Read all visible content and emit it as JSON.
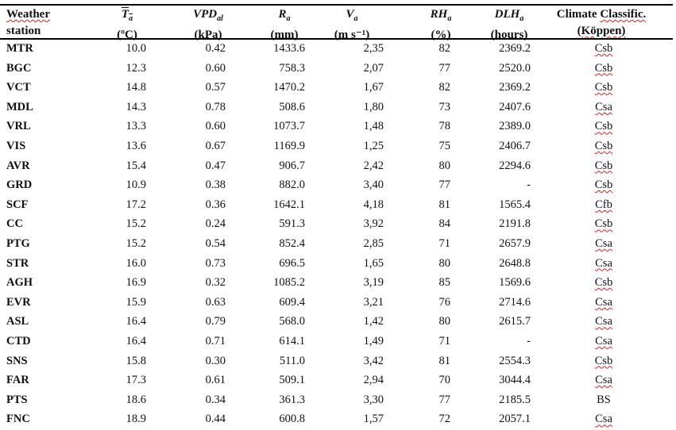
{
  "headers": {
    "station": {
      "line1": "Weather",
      "line2": "station"
    },
    "t": {
      "symbol": "T",
      "sub": "a",
      "unit": "(ºC)"
    },
    "vpd": {
      "symbol": "VPD",
      "sub": "al",
      "unit": "(kPa)"
    },
    "r": {
      "symbol": "R",
      "sub": "a",
      "unit": "(mm)"
    },
    "v": {
      "symbol": "V",
      "sub": "a",
      "unit": "(m s⁻¹)"
    },
    "rh": {
      "symbol": "RH",
      "sub": "a",
      "unit": "(%)"
    },
    "dlh": {
      "symbol": "DLH",
      "sub": "a",
      "unit": "(hours)"
    },
    "climate": {
      "line1a": "Climate ",
      "line1b": "Classific.",
      "line2": "(Köppen)"
    }
  },
  "rows": [
    [
      "MTR",
      "10.0",
      "0.42",
      "1433.6",
      "2,35",
      "82",
      "2369.2",
      "Csb"
    ],
    [
      "BGC",
      "12.3",
      "0.60",
      "758.3",
      "2,07",
      "77",
      "2520.0",
      "Csb"
    ],
    [
      "VCT",
      "14.8",
      "0.57",
      "1470.2",
      "1,67",
      "82",
      "2369.2",
      "Csb"
    ],
    [
      "MDL",
      "14.3",
      "0.78",
      "508.6",
      "1,80",
      "73",
      "2407.6",
      "Csa"
    ],
    [
      "VRL",
      "13.3",
      "0.60",
      "1073.7",
      "1,48",
      "78",
      "2389.0",
      "Csb"
    ],
    [
      "VIS",
      "13.6",
      "0.67",
      "1169.9",
      "1,25",
      "75",
      "2406.7",
      "Csb"
    ],
    [
      "AVR",
      "15.4",
      "0.47",
      "906.7",
      "2,42",
      "80",
      "2294.6",
      "Csb"
    ],
    [
      "GRD",
      "10.9",
      "0.38",
      "882.0",
      "3,40",
      "77",
      "-",
      "Csb"
    ],
    [
      "SCF",
      "17.2",
      "0.36",
      "1642.1",
      "4,18",
      "81",
      "1565.4",
      "Cfb"
    ],
    [
      "CC",
      "15.2",
      "0.24",
      "591.3",
      "3,92",
      "84",
      "2191.8",
      "Csb"
    ],
    [
      "PTG",
      "15.2",
      "0.54",
      "852.4",
      "2,85",
      "71",
      "2657.9",
      "Csa"
    ],
    [
      "STR",
      "16.0",
      "0.73",
      "696.5",
      "1,65",
      "80",
      "2648.8",
      "Csa"
    ],
    [
      "AGH",
      "16.9",
      "0.32",
      "1085.2",
      "3,19",
      "85",
      "1569.6",
      "Csb"
    ],
    [
      "EVR",
      "15.9",
      "0.63",
      "609.4",
      "3,21",
      "76",
      "2714.6",
      "Csa"
    ],
    [
      "ASL",
      "16.4",
      "0.79",
      "568.0",
      "1,42",
      "80",
      "2615.7",
      "Csa"
    ],
    [
      "CTD",
      "16.4",
      "0.71",
      "614.1",
      "1,49",
      "71",
      "-",
      "Csa"
    ],
    [
      "SNS",
      "15.8",
      "0.30",
      "511.0",
      "3,42",
      "81",
      "2554.3",
      "Csb"
    ],
    [
      "FAR",
      "17.3",
      "0.61",
      "509.1",
      "2,94",
      "70",
      "3044.4",
      "Csa"
    ],
    [
      "PTS",
      "18.6",
      "0.34",
      "361.3",
      "3,30",
      "77",
      "2185.5",
      "BS"
    ],
    [
      "FNC",
      "18.9",
      "0.44",
      "600.8",
      "1,57",
      "72",
      "2057.1",
      "Csa"
    ]
  ],
  "spellcheck_color": "#e02020"
}
